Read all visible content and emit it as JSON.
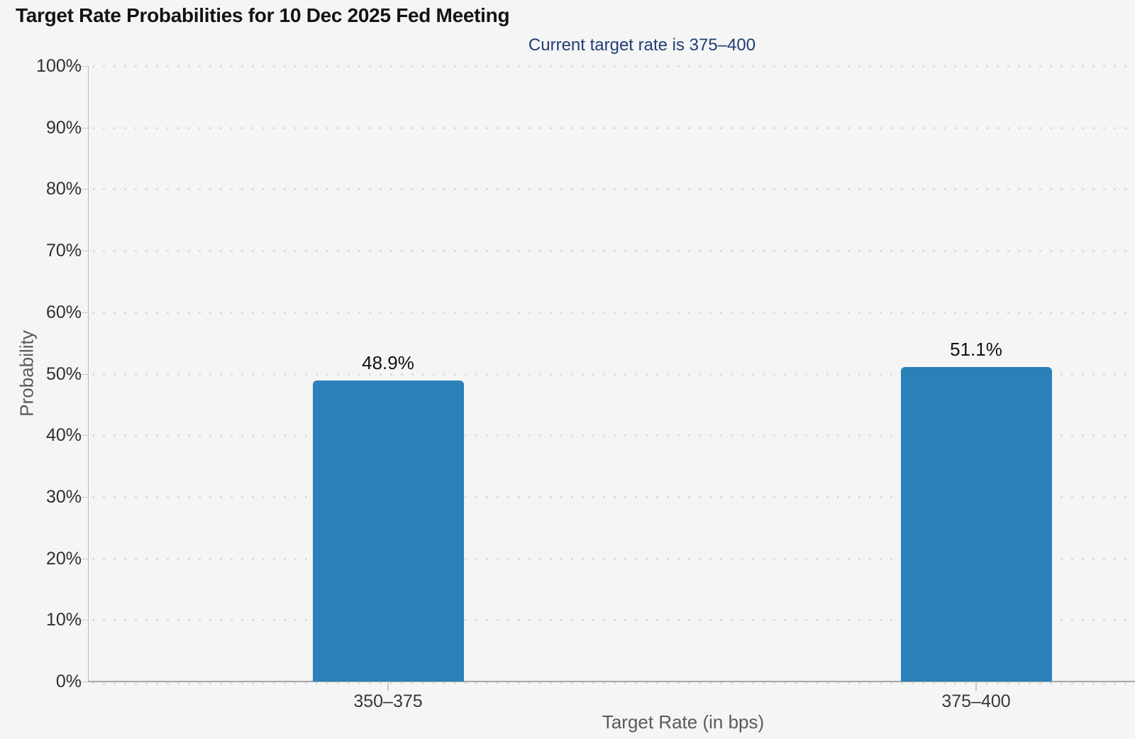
{
  "chart_data": {
    "type": "bar",
    "title": "Target Rate Probabilities for 10 Dec 2025 Fed Meeting",
    "subtitle": "Current target rate is 375–400",
    "categories": [
      "350–375",
      "375–400"
    ],
    "values": [
      48.9,
      51.1
    ],
    "value_labels": [
      "48.9%",
      "51.1%"
    ],
    "xlabel": "Target Rate (in bps)",
    "ylabel": "Probability",
    "ylim": [
      0,
      100
    ],
    "ytick_step": 10,
    "ytick_labels": [
      "0%",
      "10%",
      "20%",
      "30%",
      "40%",
      "50%",
      "60%",
      "70%",
      "80%",
      "90%",
      "100%"
    ],
    "grid": "dotted-horizontal",
    "legend": "none"
  },
  "colors": {
    "background": "#f5f5f6",
    "bar": "#2b80b9",
    "title_text": "#141414",
    "subtitle_text": "#223d73",
    "tick_text": "#303032",
    "tick_text_x": "#38383a",
    "axis_title_text": "#5a5a5c",
    "grid_dot": "#dcdcdd",
    "axis_line": "#b9b9bb",
    "axis_line_dark": "#a6a6a8",
    "tick_line": "#c9c9cb"
  }
}
